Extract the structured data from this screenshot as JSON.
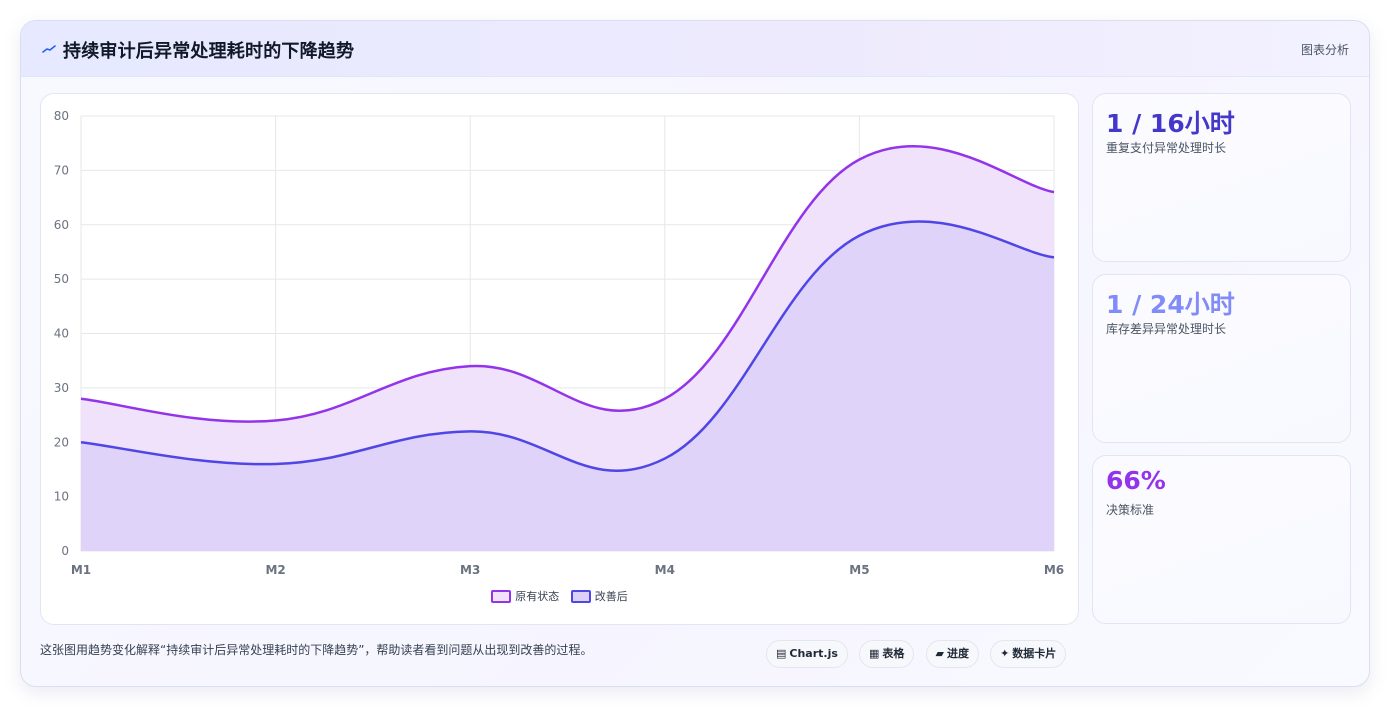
{
  "header": {
    "title": "持续审计后异常处理耗时的下降趋势",
    "link": "图表分析",
    "icon": "trend-line-icon"
  },
  "chart_data": {
    "type": "area",
    "categories": [
      "M1",
      "M2",
      "M3",
      "M4",
      "M5",
      "M6"
    ],
    "ylim": [
      0,
      80
    ],
    "yticks": [
      "0",
      "10",
      "20",
      "30",
      "40",
      "50",
      "60",
      "70",
      "80"
    ],
    "grid": true,
    "legend_position": "bottom",
    "series": [
      {
        "name": "原有状态",
        "values": [
          28,
          24,
          34,
          28,
          72,
          66
        ],
        "color": "#9333ea",
        "fill": "#efe2fa"
      },
      {
        "name": "改善后",
        "values": [
          20,
          16,
          22,
          17,
          58,
          54
        ],
        "color": "#4f46e5",
        "fill": "#dcd0f8"
      }
    ]
  },
  "stats": [
    {
      "value": "1 / 16小时",
      "label": "重复支付异常处理时长",
      "color": "#4338ca"
    },
    {
      "value": "1 / 24小时",
      "label": "库存差异异常处理时长",
      "color": "#818cf8"
    },
    {
      "value": "66%",
      "label": "决策标准",
      "color": "#9333ea"
    }
  ],
  "footer": {
    "text": "这张图用趋势变化解释“持续审计后异常处理耗时的下降趋势”，帮助读者看到问题从出现到改善的过程。",
    "pills": [
      {
        "icon": "▤",
        "label": "Chart.js"
      },
      {
        "icon": "▦",
        "label": "表格"
      },
      {
        "icon": "▰",
        "label": "进度"
      },
      {
        "icon": "✦",
        "label": "数据卡片"
      }
    ]
  }
}
